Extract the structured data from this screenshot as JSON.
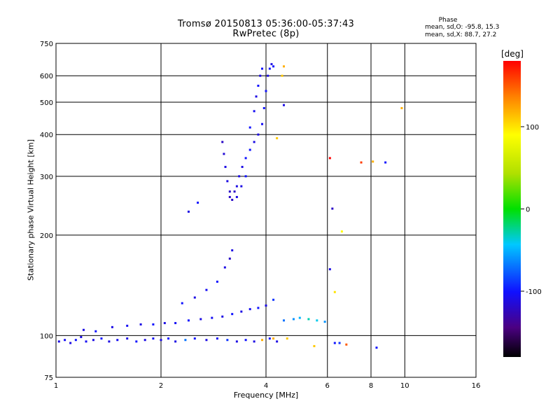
{
  "chart_data": {
    "type": "scatter",
    "title": "Tromsø 20150813 05:36:00-05:37:43",
    "subtitle": "RwPretec (8p)",
    "xlabel": "Frequency [MHz]",
    "ylabel": "Stationary phase Virtual Height [km]",
    "x_scale": "log2",
    "y_scale": "log",
    "xlim": [
      1,
      16
    ],
    "ylim": [
      75,
      750
    ],
    "x_ticks": [
      1,
      2,
      4,
      6,
      8,
      10,
      16
    ],
    "x_tick_labels": [
      "1",
      "2",
      "4",
      "6",
      "8",
      "10",
      "16"
    ],
    "y_ticks": [
      75,
      100,
      200,
      300,
      400,
      500,
      600,
      750
    ],
    "y_tick_labels": [
      "75",
      "100",
      "200",
      "300",
      "400",
      "500",
      "600",
      "750"
    ],
    "grid": true,
    "phase_stats": {
      "title": "Phase",
      "line_o": "mean, sd,O: -95.8, 15.3",
      "line_x": "mean, sd,X:  88.7, 27.2"
    },
    "colorbar": {
      "label": "[deg]",
      "ticks": [
        100,
        0,
        -100
      ],
      "tick_labels": [
        "100",
        "0",
        "-100"
      ],
      "range": [
        -180,
        180
      ]
    },
    "series": [
      {
        "values": [
          [
            1.02,
            96,
            -110
          ],
          [
            1.06,
            97,
            -105
          ],
          [
            1.1,
            95,
            -110
          ],
          [
            1.14,
            97,
            -100
          ],
          [
            1.18,
            99,
            -110
          ],
          [
            1.22,
            96,
            -105
          ],
          [
            1.28,
            97,
            -110
          ],
          [
            1.35,
            98,
            -100
          ],
          [
            1.42,
            96,
            -110
          ],
          [
            1.5,
            97,
            -105
          ],
          [
            1.6,
            98,
            -110
          ],
          [
            1.7,
            96,
            -100
          ],
          [
            1.8,
            97,
            -110
          ],
          [
            1.9,
            98,
            -105
          ],
          [
            2.0,
            97,
            -110
          ],
          [
            2.1,
            98,
            -100
          ],
          [
            2.2,
            96,
            -110
          ],
          [
            2.35,
            97,
            -70
          ],
          [
            2.5,
            98,
            -100
          ],
          [
            2.7,
            97,
            -110
          ],
          [
            2.9,
            98,
            -105
          ],
          [
            3.1,
            97,
            -90
          ],
          [
            3.3,
            96,
            -110
          ],
          [
            3.5,
            97,
            -100
          ],
          [
            3.7,
            96,
            -110
          ],
          [
            3.9,
            97,
            120
          ],
          [
            4.1,
            98,
            -100
          ],
          [
            4.3,
            96,
            -110
          ],
          [
            1.2,
            104,
            -110
          ],
          [
            1.3,
            103,
            -100
          ],
          [
            1.45,
            106,
            -110
          ],
          [
            1.6,
            107,
            -105
          ],
          [
            1.75,
            108,
            -110
          ],
          [
            1.9,
            108,
            -100
          ],
          [
            2.05,
            109,
            -110
          ],
          [
            2.2,
            109,
            -105
          ],
          [
            2.4,
            111,
            -100
          ],
          [
            2.6,
            112,
            -110
          ],
          [
            2.8,
            113,
            -105
          ],
          [
            3.0,
            114,
            -110
          ],
          [
            3.2,
            116,
            -100
          ],
          [
            3.4,
            118,
            -110
          ],
          [
            3.6,
            120,
            -105
          ],
          [
            3.8,
            121,
            -100
          ],
          [
            4.0,
            123,
            -110
          ],
          [
            4.2,
            128,
            -90
          ],
          [
            2.3,
            125,
            -100
          ],
          [
            2.5,
            130,
            -110
          ],
          [
            2.7,
            137,
            -105
          ],
          [
            2.9,
            145,
            -100
          ],
          [
            3.05,
            160,
            -110
          ],
          [
            3.15,
            170,
            -120
          ],
          [
            3.2,
            180,
            -110
          ],
          [
            4.5,
            111,
            -70
          ],
          [
            4.8,
            112,
            -60
          ],
          [
            5.0,
            113,
            -50
          ],
          [
            5.3,
            112,
            -30
          ],
          [
            5.6,
            111,
            -40
          ],
          [
            5.9,
            110,
            -60
          ],
          [
            6.3,
            95,
            -100
          ],
          [
            6.5,
            95,
            -90
          ],
          [
            2.4,
            235,
            -110
          ],
          [
            2.55,
            250,
            -100
          ],
          [
            3.15,
            260,
            -120
          ],
          [
            3.2,
            255,
            -120
          ],
          [
            3.25,
            270,
            -120
          ],
          [
            3.3,
            280,
            -110
          ],
          [
            3.35,
            300,
            -110
          ],
          [
            3.42,
            320,
            -110
          ],
          [
            3.5,
            340,
            -100
          ],
          [
            3.6,
            360,
            -100
          ],
          [
            3.7,
            380,
            -110
          ],
          [
            3.8,
            400,
            -110
          ],
          [
            3.9,
            430,
            -105
          ],
          [
            3.95,
            480,
            -100
          ],
          [
            4.0,
            540,
            -100
          ],
          [
            4.05,
            600,
            -110
          ],
          [
            4.1,
            630,
            -100
          ],
          [
            4.15,
            650,
            -110
          ],
          [
            4.2,
            640,
            -100
          ],
          [
            3.0,
            380,
            -120
          ],
          [
            3.03,
            350,
            -115
          ],
          [
            3.06,
            320,
            -110
          ],
          [
            3.1,
            290,
            -110
          ],
          [
            3.15,
            270,
            -120
          ],
          [
            3.3,
            260,
            -110
          ],
          [
            3.4,
            280,
            -110
          ],
          [
            3.5,
            300,
            -100
          ],
          [
            3.6,
            420,
            -100
          ],
          [
            3.7,
            470,
            -105
          ],
          [
            3.75,
            520,
            -110
          ],
          [
            3.8,
            560,
            -100
          ],
          [
            3.85,
            600,
            -110
          ],
          [
            3.9,
            630,
            -100
          ],
          [
            4.5,
            640,
            120
          ],
          [
            4.45,
            600,
            110
          ],
          [
            4.3,
            390,
            110
          ],
          [
            4.5,
            490,
            -110
          ],
          [
            6.1,
            340,
            180
          ],
          [
            7.5,
            330,
            160
          ],
          [
            8.1,
            332,
            120
          ],
          [
            8.8,
            330,
            -100
          ],
          [
            9.8,
            480,
            120
          ],
          [
            6.6,
            205,
            90
          ],
          [
            6.2,
            240,
            -120
          ],
          [
            6.1,
            158,
            -110
          ],
          [
            6.3,
            135,
            100
          ],
          [
            4.2,
            98,
            120
          ],
          [
            4.6,
            98,
            110
          ],
          [
            5.5,
            93,
            110
          ],
          [
            6.8,
            94,
            150
          ],
          [
            8.3,
            92,
            -100
          ]
        ]
      }
    ]
  }
}
